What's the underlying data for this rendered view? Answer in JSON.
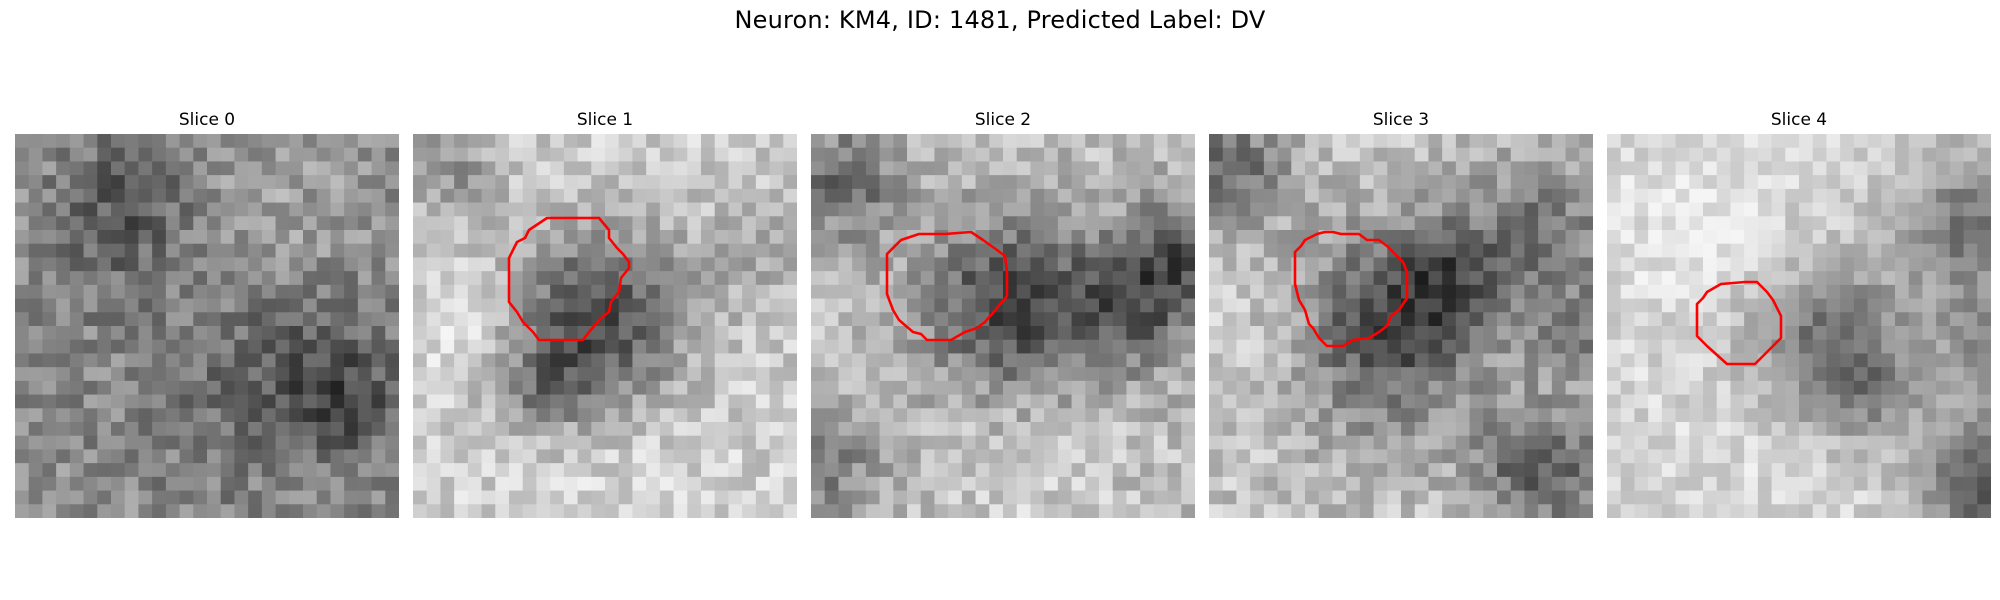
{
  "figure": {
    "title": "Neuron: KM4, ID: 1481, Predicted Label: DV"
  },
  "panels": [
    {
      "title": "Slice 0",
      "has_roi_outline": false
    },
    {
      "title": "Slice 1",
      "has_roi_outline": true
    },
    {
      "title": "Slice 2",
      "has_roi_outline": true
    },
    {
      "title": "Slice 3",
      "has_roi_outline": true
    },
    {
      "title": "Slice 4",
      "has_roi_outline": true
    }
  ],
  "colors": {
    "background": "#ffffff",
    "roi_outline": "#ff0000",
    "image_colormap": "grayscale"
  }
}
